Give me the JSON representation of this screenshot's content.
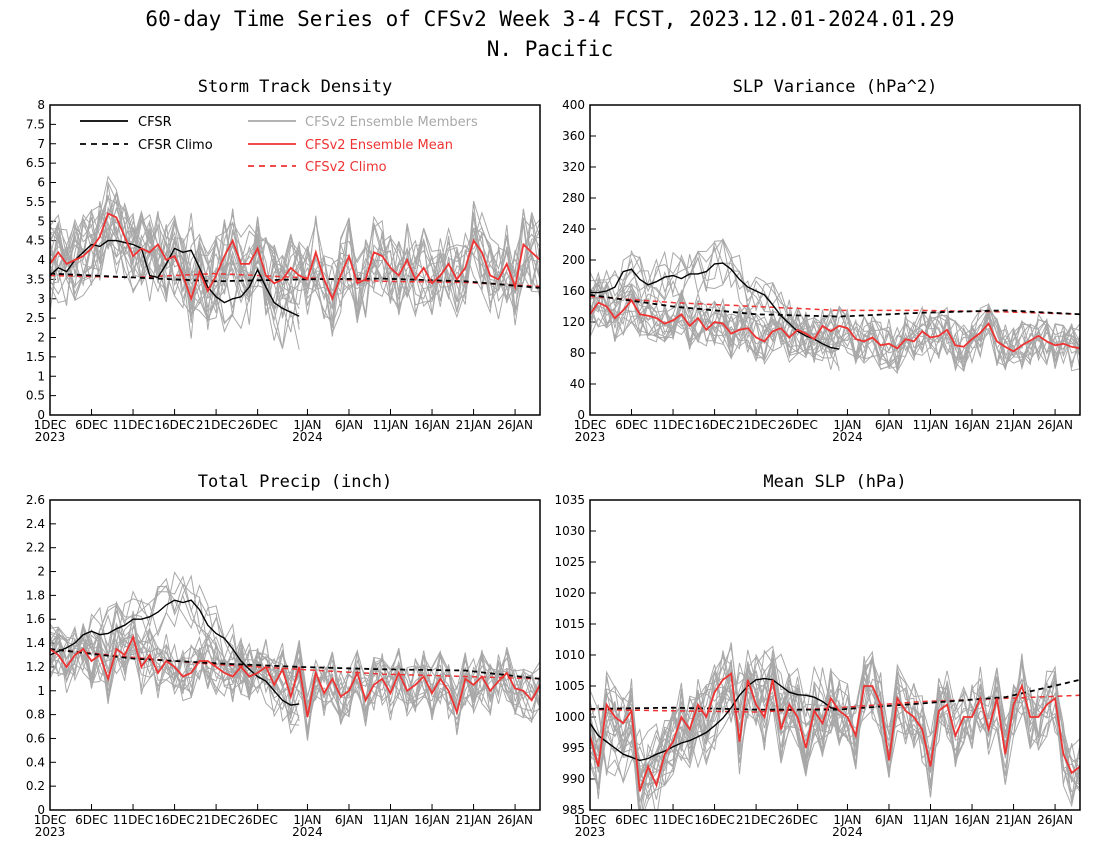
{
  "figure": {
    "title_line1": "60-day Time Series of CFSv2 Week 3-4 FCST, 2023.12.01-2024.01.29",
    "title_line2": "N. Pacific"
  },
  "legend": [
    {
      "label": "CFSR",
      "color": "#000000",
      "style": "solid"
    },
    {
      "label": "CFSR Climo",
      "color": "#000000",
      "style": "dashed"
    },
    {
      "label": "CFSv2 Ensemble Members",
      "color": "#a8a8a8",
      "style": "solid"
    },
    {
      "label": "CFSv2 Ensemble Mean",
      "color": "#ee3333",
      "style": "solid"
    },
    {
      "label": "CFSv2 Climo",
      "color": "#ee3333",
      "style": "dashed"
    }
  ],
  "x_ticks": [
    {
      "day": 0,
      "label": "1DEC",
      "sub": "2023"
    },
    {
      "day": 5,
      "label": "6DEC",
      "sub": ""
    },
    {
      "day": 10,
      "label": "11DEC",
      "sub": ""
    },
    {
      "day": 15,
      "label": "16DEC",
      "sub": ""
    },
    {
      "day": 20,
      "label": "21DEC",
      "sub": ""
    },
    {
      "day": 25,
      "label": "26DEC",
      "sub": ""
    },
    {
      "day": 31,
      "label": "1JAN",
      "sub": "2024"
    },
    {
      "day": 36,
      "label": "6JAN",
      "sub": ""
    },
    {
      "day": 41,
      "label": "11JAN",
      "sub": ""
    },
    {
      "day": 46,
      "label": "16JAN",
      "sub": ""
    },
    {
      "day": 51,
      "label": "21JAN",
      "sub": ""
    },
    {
      "day": 56,
      "label": "26JAN",
      "sub": ""
    }
  ],
  "chart_data": [
    {
      "type": "line",
      "title": "Storm Track Density",
      "x_range": [
        0,
        59
      ],
      "ylim": [
        0,
        8
      ],
      "yticks": [
        "0",
        "0.5",
        "1",
        "1.5",
        "2",
        "2.5",
        "3",
        "3.5",
        "4",
        "4.5",
        "5",
        "5.5",
        "6",
        "6.5",
        "7",
        "7.5",
        "8"
      ],
      "show_legend": true,
      "series": [
        {
          "name": "CFSR",
          "x": [
            0,
            1,
            2,
            3,
            4,
            5,
            6,
            7,
            8,
            9,
            10,
            11,
            12,
            13,
            14,
            15,
            16,
            17,
            18,
            19,
            20,
            21,
            22,
            23,
            24,
            25,
            26,
            27,
            28,
            29,
            30
          ],
          "y": [
            3.6,
            3.8,
            3.7,
            4.0,
            4.2,
            4.4,
            4.35,
            4.5,
            4.5,
            4.45,
            4.4,
            4.3,
            3.6,
            3.55,
            3.9,
            4.3,
            4.2,
            4.25,
            3.8,
            3.3,
            3.05,
            2.9,
            3.0,
            3.05,
            3.3,
            3.75,
            3.3,
            2.9,
            2.75,
            2.65,
            2.55
          ]
        },
        {
          "name": "CFSR Climo",
          "x": [
            0,
            10,
            20,
            30,
            40,
            50,
            59
          ],
          "y": [
            3.65,
            3.55,
            3.45,
            3.5,
            3.52,
            3.45,
            3.28
          ]
        },
        {
          "name": "CFSv2 Ensemble Mean",
          "x": [
            0,
            1,
            2,
            3,
            4,
            5,
            6,
            7,
            8,
            9,
            10,
            11,
            12,
            13,
            14,
            15,
            16,
            17,
            18,
            19,
            20,
            21,
            22,
            23,
            24,
            25,
            26,
            27,
            28,
            29,
            30,
            31,
            32,
            33,
            34,
            35,
            36,
            37,
            38,
            39,
            40,
            41,
            42,
            43,
            44,
            45,
            46,
            47,
            48,
            49,
            50,
            51,
            52,
            53,
            54,
            55,
            56,
            57,
            58,
            59
          ],
          "y": [
            3.9,
            4.2,
            3.9,
            4.0,
            4.1,
            4.3,
            4.6,
            5.2,
            5.1,
            4.6,
            4.1,
            4.3,
            4.2,
            4.4,
            4.0,
            4.1,
            3.6,
            3.0,
            3.7,
            3.2,
            3.6,
            4.1,
            4.5,
            3.9,
            3.9,
            4.3,
            3.6,
            3.4,
            3.5,
            3.8,
            3.6,
            3.5,
            4.2,
            3.5,
            3.0,
            3.6,
            4.1,
            3.4,
            3.5,
            4.2,
            4.1,
            3.8,
            3.6,
            4.0,
            3.5,
            3.8,
            3.4,
            3.6,
            3.9,
            3.5,
            3.8,
            4.5,
            4.2,
            3.6,
            3.5,
            3.9,
            3.3,
            4.4,
            4.2,
            4.0
          ]
        },
        {
          "name": "CFSv2 Climo",
          "x": [
            0,
            10,
            20,
            30,
            40,
            50,
            59
          ],
          "y": [
            3.6,
            3.55,
            3.65,
            3.55,
            3.45,
            3.42,
            3.32
          ]
        }
      ]
    },
    {
      "type": "line",
      "title": "SLP Variance (hPa^2)",
      "x_range": [
        0,
        59
      ],
      "ylim": [
        0,
        400
      ],
      "yticks": [
        "0",
        "40",
        "80",
        "120",
        "160",
        "200",
        "240",
        "280",
        "320",
        "360",
        "400"
      ],
      "show_legend": false,
      "series": [
        {
          "name": "CFSR",
          "x": [
            0,
            1,
            2,
            3,
            4,
            5,
            6,
            7,
            8,
            9,
            10,
            11,
            12,
            13,
            14,
            15,
            16,
            17,
            18,
            19,
            20,
            21,
            22,
            23,
            24,
            25,
            26,
            27,
            28,
            29,
            30
          ],
          "y": [
            158,
            158,
            160,
            165,
            185,
            188,
            175,
            168,
            172,
            178,
            180,
            176,
            182,
            182,
            185,
            195,
            196,
            188,
            175,
            165,
            160,
            155,
            142,
            128,
            118,
            108,
            102,
            98,
            92,
            87,
            85
          ]
        },
        {
          "name": "CFSR Climo",
          "x": [
            0,
            10,
            20,
            30,
            40,
            50,
            59
          ],
          "y": [
            155,
            140,
            130,
            127,
            132,
            135,
            130
          ]
        },
        {
          "name": "CFSv2 Ensemble Mean",
          "x": [
            0,
            1,
            2,
            3,
            4,
            5,
            6,
            7,
            8,
            9,
            10,
            11,
            12,
            13,
            14,
            15,
            16,
            17,
            18,
            19,
            20,
            21,
            22,
            23,
            24,
            25,
            26,
            27,
            28,
            29,
            30,
            31,
            32,
            33,
            34,
            35,
            36,
            37,
            38,
            39,
            40,
            41,
            42,
            43,
            44,
            45,
            46,
            47,
            48,
            49,
            50,
            51,
            52,
            53,
            54,
            55,
            56,
            57,
            58,
            59
          ],
          "y": [
            130,
            145,
            140,
            125,
            135,
            148,
            130,
            128,
            125,
            118,
            122,
            130,
            115,
            125,
            110,
            120,
            118,
            105,
            110,
            112,
            100,
            95,
            108,
            112,
            100,
            110,
            105,
            98,
            115,
            108,
            115,
            112,
            98,
            95,
            100,
            90,
            92,
            86,
            98,
            95,
            108,
            100,
            102,
            110,
            90,
            88,
            98,
            106,
            118,
            95,
            88,
            82,
            90,
            96,
            102,
            95,
            90,
            92,
            88,
            86
          ]
        },
        {
          "name": "CFSv2 Climo",
          "x": [
            0,
            10,
            20,
            30,
            40,
            50,
            59
          ],
          "y": [
            153,
            145,
            140,
            135,
            135,
            133,
            130
          ]
        }
      ]
    },
    {
      "type": "line",
      "title": "Total Precip (inch)",
      "x_range": [
        0,
        59
      ],
      "ylim": [
        0,
        2.6
      ],
      "yticks": [
        "0",
        "0.2",
        "0.4",
        "0.6",
        "0.8",
        "1",
        "1.2",
        "1.4",
        "1.6",
        "1.8",
        "2",
        "2.2",
        "2.4",
        "2.6"
      ],
      "show_legend": false,
      "series": [
        {
          "name": "CFSR",
          "x": [
            0,
            1,
            2,
            3,
            4,
            5,
            6,
            7,
            8,
            9,
            10,
            11,
            12,
            13,
            14,
            15,
            16,
            17,
            18,
            19,
            20,
            21,
            22,
            23,
            24,
            25,
            26,
            27,
            28,
            29,
            30
          ],
          "y": [
            1.3,
            1.33,
            1.36,
            1.4,
            1.47,
            1.5,
            1.47,
            1.48,
            1.52,
            1.55,
            1.6,
            1.6,
            1.62,
            1.66,
            1.72,
            1.76,
            1.74,
            1.76,
            1.68,
            1.55,
            1.48,
            1.44,
            1.35,
            1.25,
            1.18,
            1.12,
            1.08,
            1.0,
            0.92,
            0.88,
            0.89
          ]
        },
        {
          "name": "CFSR Climo",
          "x": [
            0,
            10,
            20,
            30,
            40,
            50,
            59
          ],
          "y": [
            1.35,
            1.27,
            1.23,
            1.2,
            1.18,
            1.17,
            1.1
          ]
        },
        {
          "name": "CFSv2 Ensemble Mean",
          "x": [
            0,
            1,
            2,
            3,
            4,
            5,
            6,
            7,
            8,
            9,
            10,
            11,
            12,
            13,
            14,
            15,
            16,
            17,
            18,
            19,
            20,
            21,
            22,
            23,
            24,
            25,
            26,
            27,
            28,
            29,
            30,
            31,
            32,
            33,
            34,
            35,
            36,
            37,
            38,
            39,
            40,
            41,
            42,
            43,
            44,
            45,
            46,
            47,
            48,
            49,
            50,
            51,
            52,
            53,
            54,
            55,
            56,
            57,
            58,
            59
          ],
          "y": [
            1.35,
            1.3,
            1.2,
            1.3,
            1.35,
            1.25,
            1.3,
            1.1,
            1.35,
            1.3,
            1.45,
            1.2,
            1.3,
            1.15,
            1.25,
            1.2,
            1.12,
            1.15,
            1.25,
            1.25,
            1.2,
            1.15,
            1.12,
            1.2,
            1.12,
            1.15,
            1.2,
            1.05,
            1.18,
            0.95,
            1.2,
            0.78,
            1.15,
            0.98,
            1.1,
            0.95,
            1.0,
            1.15,
            0.92,
            1.05,
            1.1,
            0.98,
            1.15,
            1.0,
            1.05,
            1.12,
            0.98,
            1.1,
            1.0,
            0.82,
            1.1,
            1.05,
            1.12,
            1.0,
            1.08,
            1.15,
            1.02,
            1.0,
            0.92,
            1.05
          ]
        },
        {
          "name": "CFSv2 Climo",
          "x": [
            0,
            10,
            20,
            30,
            40,
            50,
            59
          ],
          "y": [
            1.35,
            1.28,
            1.22,
            1.18,
            1.14,
            1.12,
            1.1
          ]
        }
      ]
    },
    {
      "type": "line",
      "title": "Mean SLP (hPa)",
      "x_range": [
        0,
        59
      ],
      "ylim": [
        985,
        1035
      ],
      "yticks": [
        "985",
        "990",
        "995",
        "1000",
        "1005",
        "1010",
        "1015",
        "1020",
        "1025",
        "1030",
        "1035"
      ],
      "show_legend": false,
      "series": [
        {
          "name": "CFSR",
          "x": [
            0,
            1,
            2,
            3,
            4,
            5,
            6,
            7,
            8,
            9,
            10,
            11,
            12,
            13,
            14,
            15,
            16,
            17,
            18,
            19,
            20,
            21,
            22,
            23,
            24,
            25,
            26,
            27,
            28,
            29,
            30
          ],
          "y": [
            999,
            997,
            996,
            995,
            994,
            993.5,
            993,
            993.3,
            994,
            994.5,
            995.2,
            995.8,
            996.2,
            996.8,
            997.5,
            998.6,
            999.8,
            1001.5,
            1003.5,
            1005,
            1006,
            1006.2,
            1006,
            1005,
            1004,
            1003.6,
            1003.5,
            1003.2,
            1002.5,
            1001.5,
            1001.2
          ]
        },
        {
          "name": "CFSR Climo",
          "x": [
            0,
            10,
            20,
            30,
            40,
            50,
            59
          ],
          "y": [
            1001.3,
            1001.5,
            1001.2,
            1001.2,
            1002.2,
            1003.2,
            1006
          ]
        },
        {
          "name": "CFSv2 Ensemble Mean",
          "x": [
            0,
            1,
            2,
            3,
            4,
            5,
            6,
            7,
            8,
            9,
            10,
            11,
            12,
            13,
            14,
            15,
            16,
            17,
            18,
            19,
            20,
            21,
            22,
            23,
            24,
            25,
            26,
            27,
            28,
            29,
            30,
            31,
            32,
            33,
            34,
            35,
            36,
            37,
            38,
            39,
            40,
            41,
            42,
            43,
            44,
            45,
            46,
            47,
            48,
            49,
            50,
            51,
            52,
            53,
            54,
            55,
            56,
            57,
            58,
            59
          ],
          "y": [
            997,
            992,
            1002,
            1000,
            999,
            1001,
            988,
            992,
            989,
            994,
            996,
            1000,
            998,
            1002,
            1000,
            1004,
            1006,
            1007,
            996,
            1006,
            1002,
            1000,
            1006,
            998,
            1002,
            1000,
            995,
            1001,
            999,
            1003,
            1001,
            1000,
            997,
            1005,
            1005,
            1002,
            993,
            1003,
            1001,
            1000,
            998,
            992,
            1001,
            1002,
            997,
            1000,
            1000,
            1003,
            998,
            1003,
            994,
            1002,
            1005,
            1000,
            1000,
            1002,
            1003,
            994,
            991,
            992
          ]
        },
        {
          "name": "CFSv2 Climo",
          "x": [
            0,
            10,
            20,
            30,
            40,
            50,
            59
          ],
          "y": [
            1001.2,
            1001,
            1000.8,
            1001.5,
            1002.5,
            1003,
            1003.5
          ]
        }
      ]
    }
  ]
}
